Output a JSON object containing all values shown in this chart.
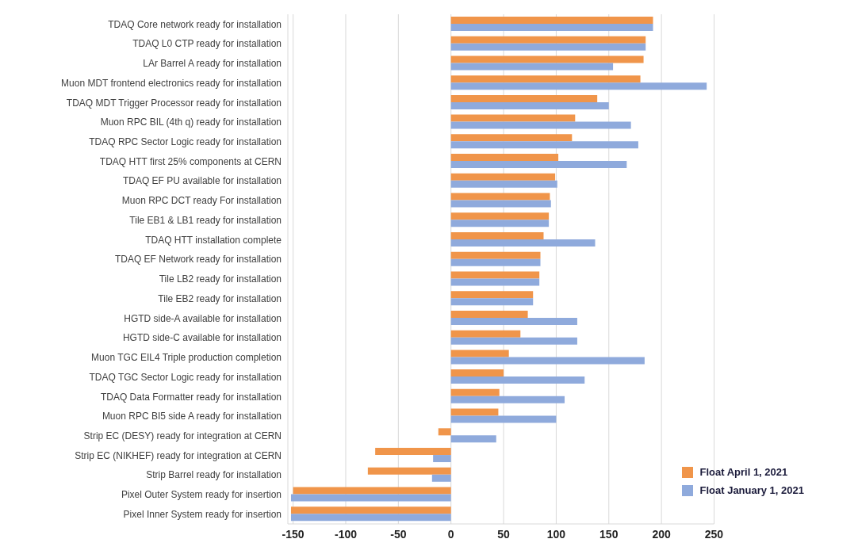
{
  "chart_data": {
    "type": "bar",
    "orientation": "horizontal",
    "categories": [
      "TDAQ Core network ready for installation",
      "TDAQ L0 CTP ready for installation",
      "LAr Barrel A ready for installation",
      "Muon MDT frontend electronics ready for installation",
      "TDAQ MDT Trigger Processor ready for installation",
      "Muon RPC BIL (4th q) ready for installation",
      "TDAQ RPC Sector Logic ready for installation",
      "TDAQ HTT first 25% components at CERN",
      "TDAQ EF PU available for installation",
      "Muon RPC DCT ready For installation",
      "Tile EB1 & LB1 ready for installation",
      "TDAQ HTT installation complete",
      "TDAQ EF Network ready for installation",
      "Tile LB2 ready for installation",
      "Tile EB2 ready for installation",
      "HGTD side-A available for installation",
      "HGTD side-C available for installation",
      "Muon TGC EIL4 Triple production completion",
      "TDAQ TGC Sector Logic ready for installation",
      "TDAQ Data Formatter ready for installation",
      "Muon RPC BI5 side A ready for installation",
      "Strip EC (DESY) ready for integration at CERN",
      "Strip EC (NIKHEF) ready for integration at CERN",
      "Strip Barrel ready for installation",
      "Pixel Outer System ready for insertion",
      "Pixel Inner System ready for insertion"
    ],
    "series": [
      {
        "name": "Float April 1, 2021",
        "color": "#f0954a",
        "values": [
          192,
          185,
          183,
          180,
          139,
          118,
          115,
          102,
          99,
          94,
          93,
          88,
          85,
          84,
          78,
          73,
          66,
          55,
          50,
          46,
          45,
          -12,
          -72,
          -79,
          -150,
          -152
        ]
      },
      {
        "name": "Float January 1, 2021",
        "color": "#8faadc",
        "values": [
          192,
          185,
          154,
          243,
          150,
          171,
          178,
          167,
          101,
          95,
          93,
          137,
          85,
          84,
          78,
          120,
          120,
          184,
          127,
          108,
          100,
          43,
          -17,
          -18,
          -152,
          -152
        ]
      }
    ],
    "xlim": [
      -155,
      250
    ],
    "xticks": [
      -150,
      -100,
      -50,
      0,
      50,
      100,
      150,
      200,
      250
    ],
    "grid": "x",
    "legend": "bottom right"
  }
}
